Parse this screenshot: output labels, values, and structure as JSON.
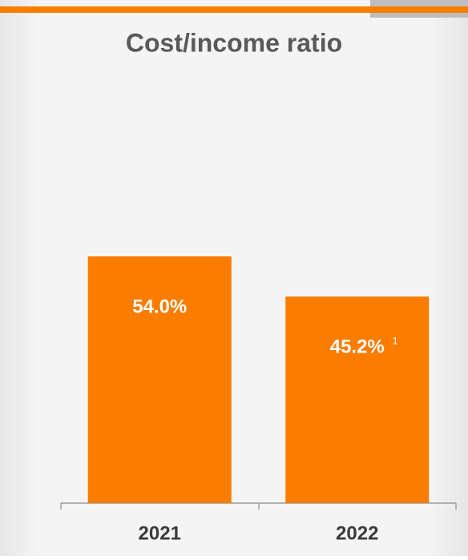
{
  "chart_data": {
    "type": "bar",
    "title": "Cost/income ratio",
    "categories": [
      "2021",
      "2022"
    ],
    "values": [
      54.0,
      45.2
    ],
    "value_labels": [
      "54.0%",
      "45.2%"
    ],
    "annotation": "1",
    "color": "#fa7d00"
  }
}
